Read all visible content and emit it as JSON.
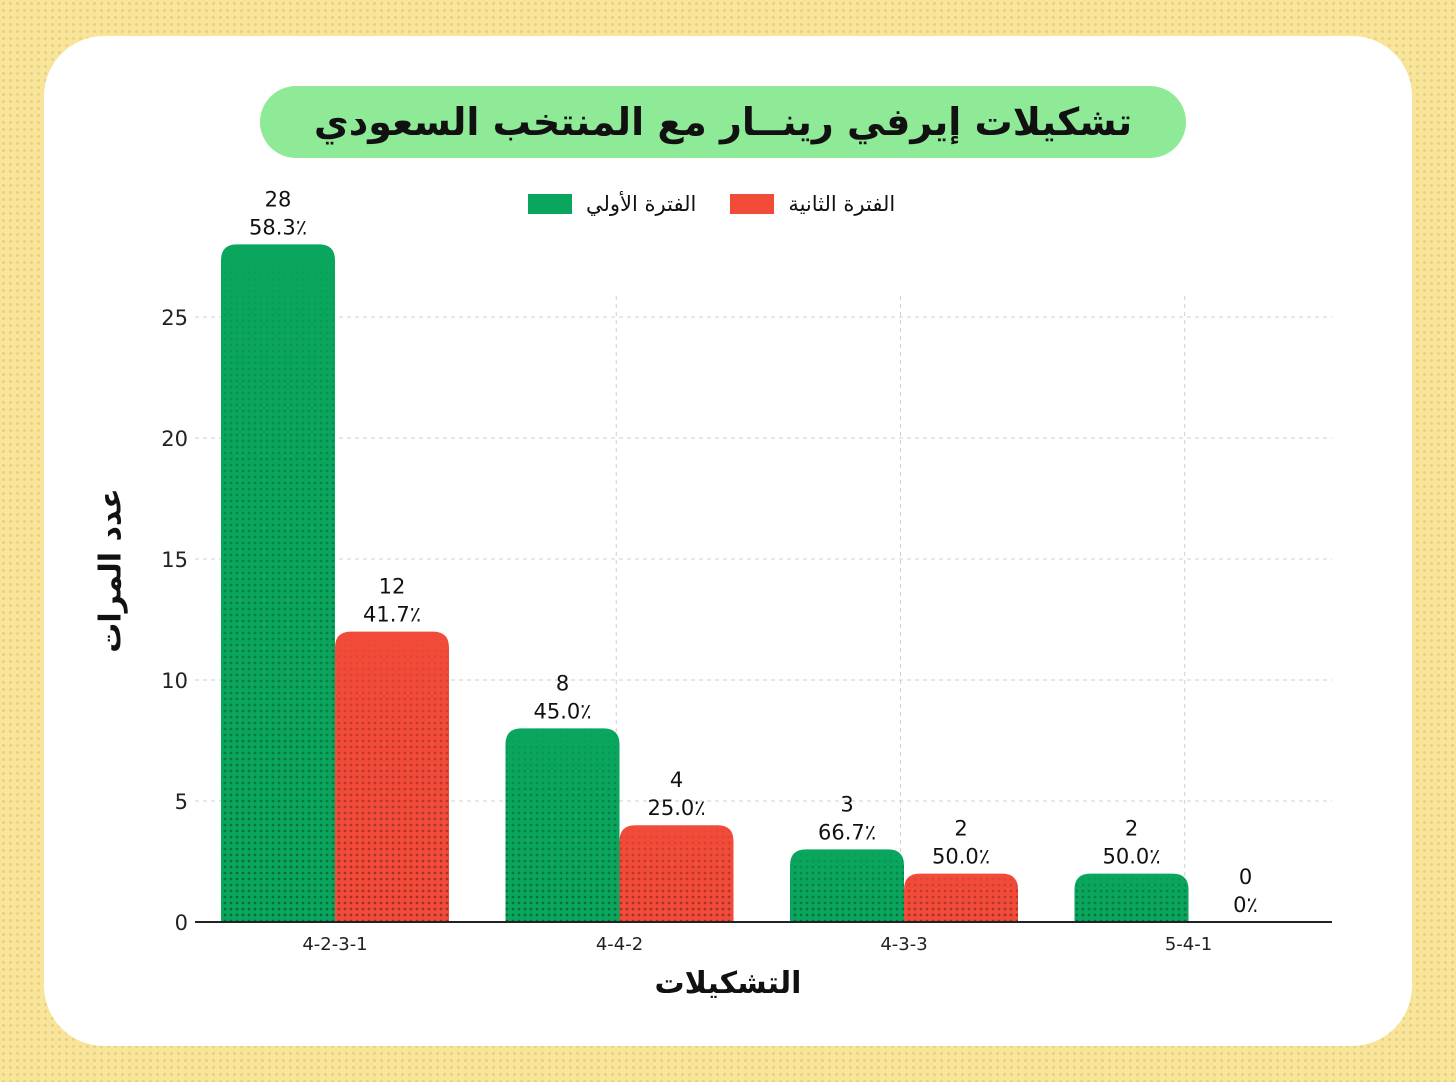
{
  "chart_data": {
    "type": "bar",
    "title": "تشكيلات إيرفي رينــار مع المنتخب السعودي",
    "xlabel": "التشكيلات",
    "ylabel": "عدد المرات",
    "categories": [
      "4-2-3-1",
      "4-4-2",
      "4-3-3",
      "5-4-1"
    ],
    "series": [
      {
        "name": "الفترة الأولي",
        "color": "#0aa65e",
        "values": [
          28,
          8,
          3,
          2
        ],
        "labels": [
          "58.3٪",
          "45.0٪",
          "66.7٪",
          "50.0٪"
        ]
      },
      {
        "name": "الفترة الثانية",
        "color": "#f24b3a",
        "values": [
          12,
          4,
          2,
          0
        ],
        "labels": [
          "41.7٪",
          "25.0٪",
          "50.0٪",
          "0٪"
        ]
      }
    ],
    "ylim": [
      0,
      28
    ],
    "yticks": [
      0,
      5,
      10,
      15,
      20,
      25
    ],
    "grid": true,
    "legend": "top-center"
  }
}
